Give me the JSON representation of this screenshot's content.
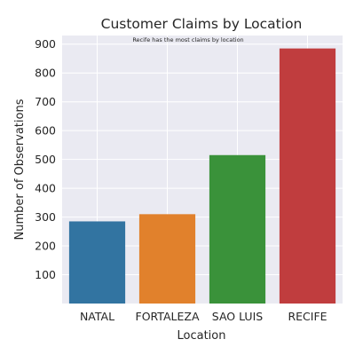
{
  "chart_data": {
    "type": "bar",
    "title": "Customer Claims by Location",
    "xlabel": "Location",
    "ylabel": "Number of Observations",
    "categories": [
      "NATAL",
      "FORTALEZA",
      "SAO LUIS",
      "RECIFE"
    ],
    "values": [
      285,
      310,
      515,
      885
    ],
    "colors": [
      "#3274a1",
      "#e1812c",
      "#3a923a",
      "#c03d3e"
    ],
    "yticks": [
      100,
      200,
      300,
      400,
      500,
      600,
      700,
      800,
      900
    ],
    "ylim": [
      0,
      930
    ],
    "grid": true,
    "background": "#eaeaf2",
    "annotation": "Recife has the most claims by location"
  }
}
